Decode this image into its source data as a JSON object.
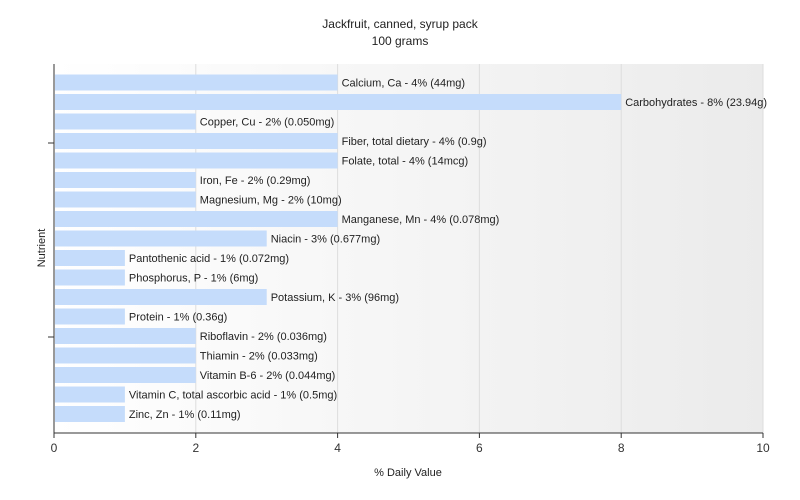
{
  "chart_data": {
    "type": "bar",
    "orientation": "horizontal",
    "title": "Jackfruit, canned, syrup pack",
    "subtitle": "100 grams",
    "xlabel": "% Daily Value",
    "ylabel": "Nutrient",
    "xlim": [
      0,
      10
    ],
    "xticks": [
      "0",
      "2",
      "4",
      "6",
      "8",
      "10"
    ],
    "bar_color": "#c5dcfb",
    "grid": "vertical",
    "categories": [
      "Calcium, Ca",
      "Carbohydrates",
      "Copper, Cu",
      "Fiber, total dietary",
      "Folate, total",
      "Iron, Fe",
      "Magnesium, Mg",
      "Manganese, Mn",
      "Niacin",
      "Pantothenic acid",
      "Phosphorus, P",
      "Potassium, K",
      "Protein",
      "Riboflavin",
      "Thiamin",
      "Vitamin B-6",
      "Vitamin C, total ascorbic acid",
      "Zinc, Zn"
    ],
    "values": [
      4,
      8,
      2,
      4,
      4,
      2,
      2,
      4,
      3,
      1,
      1,
      3,
      1,
      2,
      2,
      2,
      1,
      1
    ],
    "labels": [
      "Calcium, Ca - 4% (44mg)",
      "Carbohydrates - 8% (23.94g)",
      "Copper, Cu - 2% (0.050mg)",
      "Fiber, total dietary - 4% (0.9g)",
      "Folate, total - 4% (14mcg)",
      "Iron, Fe - 2% (0.29mg)",
      "Magnesium, Mg - 2% (10mg)",
      "Manganese, Mn - 4% (0.078mg)",
      "Niacin - 3% (0.677mg)",
      "Pantothenic acid - 1% (0.072mg)",
      "Phosphorus, P - 1% (6mg)",
      "Potassium, K - 3% (96mg)",
      "Protein - 1% (0.36g)",
      "Riboflavin - 2% (0.036mg)",
      "Thiamin - 2% (0.033mg)",
      "Vitamin B-6 - 2% (0.044mg)",
      "Vitamin C, total ascorbic acid - 1% (0.5mg)",
      "Zinc, Zn - 1% (0.11mg)"
    ]
  }
}
